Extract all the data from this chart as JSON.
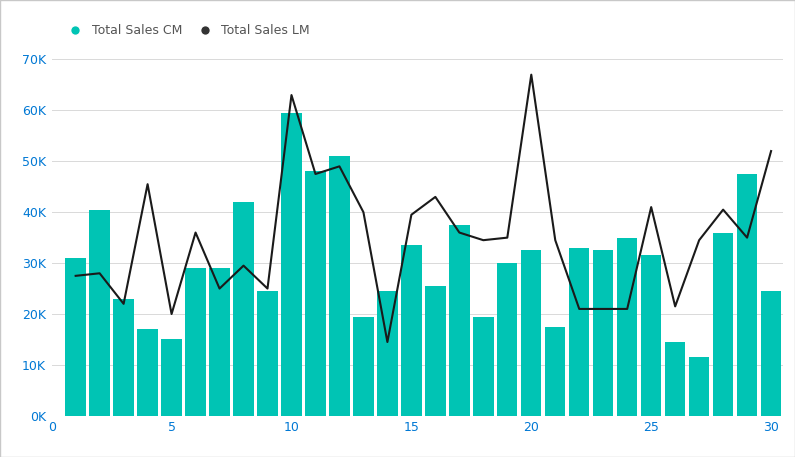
{
  "days": [
    1,
    2,
    3,
    4,
    5,
    6,
    7,
    8,
    9,
    10,
    11,
    12,
    13,
    14,
    15,
    16,
    17,
    18,
    19,
    20,
    21,
    22,
    23,
    24,
    25,
    26,
    27,
    28,
    29,
    30
  ],
  "bar_values": [
    31000,
    40500,
    23000,
    17000,
    15000,
    29000,
    29000,
    42000,
    24500,
    59500,
    48000,
    51000,
    19500,
    24500,
    33500,
    25500,
    37500,
    19500,
    30000,
    32500,
    17500,
    33000,
    32500,
    35000,
    31500,
    14500,
    11500,
    36000,
    47500,
    24500
  ],
  "line_values": [
    27500,
    28000,
    22000,
    45500,
    20000,
    36000,
    25000,
    29500,
    25000,
    63000,
    47500,
    49000,
    40000,
    14500,
    39500,
    43000,
    36000,
    34500,
    35000,
    67000,
    34500,
    21000,
    21000,
    21000,
    41000,
    21500,
    34500,
    40500,
    35000,
    52000
  ],
  "bar_color": "#00c4b4",
  "line_color": "#1a1a1a",
  "bg_color": "#ffffff",
  "grid_color": "#d9d9d9",
  "legend_cm_color": "#00c4b4",
  "legend_lm_color": "#333333",
  "ylim": [
    0,
    70000
  ],
  "ytick_values": [
    0,
    10000,
    20000,
    30000,
    40000,
    50000,
    60000,
    70000
  ],
  "ytick_labels": [
    "0K",
    "10K",
    "20K",
    "30K",
    "40K",
    "50K",
    "60K",
    "70K"
  ],
  "xlim_left": 0,
  "xlim_right": 30.5,
  "xtick_values": [
    0,
    5,
    10,
    15,
    20,
    25,
    30
  ],
  "axis_color": "#0078d4",
  "border_color": "#c8c8c8",
  "legend_text_color": "#555555"
}
